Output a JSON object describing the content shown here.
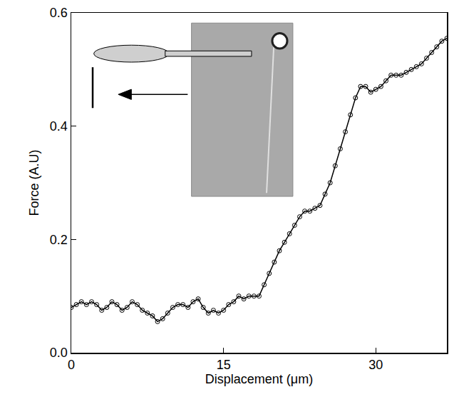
{
  "chart_data": {
    "type": "scatter",
    "x_label": "Displacement (μm)",
    "y_label": "Force (A.U)",
    "xlim": [
      0,
      37
    ],
    "xticks": [
      0,
      15,
      30
    ],
    "ylim": [
      0,
      0.6
    ],
    "yticks": [
      {
        "value": 0,
        "label": "0.0"
      },
      0.2,
      0.4,
      0.6
    ],
    "grid": false,
    "color": "#000000",
    "marker": "circle-open",
    "line_style": "solid",
    "x": [
      0,
      0.5,
      1,
      1.5,
      2,
      2.5,
      3,
      3.5,
      4,
      4.5,
      5,
      5.5,
      6,
      6.5,
      7,
      7.5,
      8,
      8.5,
      9,
      9.5,
      10,
      10.5,
      11,
      11.5,
      12,
      12.5,
      13,
      13.5,
      14,
      14.5,
      15,
      15.5,
      16,
      16.5,
      17,
      17.5,
      18,
      18.5,
      19,
      19.5,
      20,
      20.5,
      21,
      21.5,
      22,
      22.5,
      23,
      23.5,
      24,
      24.5,
      25,
      25.5,
      26,
      26.5,
      27,
      27.5,
      28,
      28.5,
      29,
      29.5,
      30,
      30.5,
      31,
      31.5,
      32,
      32.5,
      33,
      33.5,
      34,
      34.5,
      35,
      35.5,
      36,
      36.5,
      37
    ],
    "values": [
      0.08,
      0.085,
      0.09,
      0.085,
      0.09,
      0.085,
      0.075,
      0.08,
      0.09,
      0.085,
      0.075,
      0.08,
      0.09,
      0.085,
      0.075,
      0.07,
      0.065,
      0.055,
      0.06,
      0.07,
      0.08,
      0.085,
      0.085,
      0.08,
      0.09,
      0.095,
      0.08,
      0.07,
      0.075,
      0.07,
      0.075,
      0.085,
      0.09,
      0.1,
      0.095,
      0.1,
      0.1,
      0.1,
      0.12,
      0.14,
      0.16,
      0.18,
      0.195,
      0.21,
      0.225,
      0.24,
      0.25,
      0.25,
      0.255,
      0.26,
      0.28,
      0.3,
      0.33,
      0.36,
      0.39,
      0.42,
      0.45,
      0.47,
      0.47,
      0.46,
      0.465,
      0.47,
      0.48,
      0.49,
      0.49,
      0.49,
      0.495,
      0.5,
      0.505,
      0.51,
      0.52,
      0.53,
      0.54,
      0.55,
      0.555
    ]
  }
}
